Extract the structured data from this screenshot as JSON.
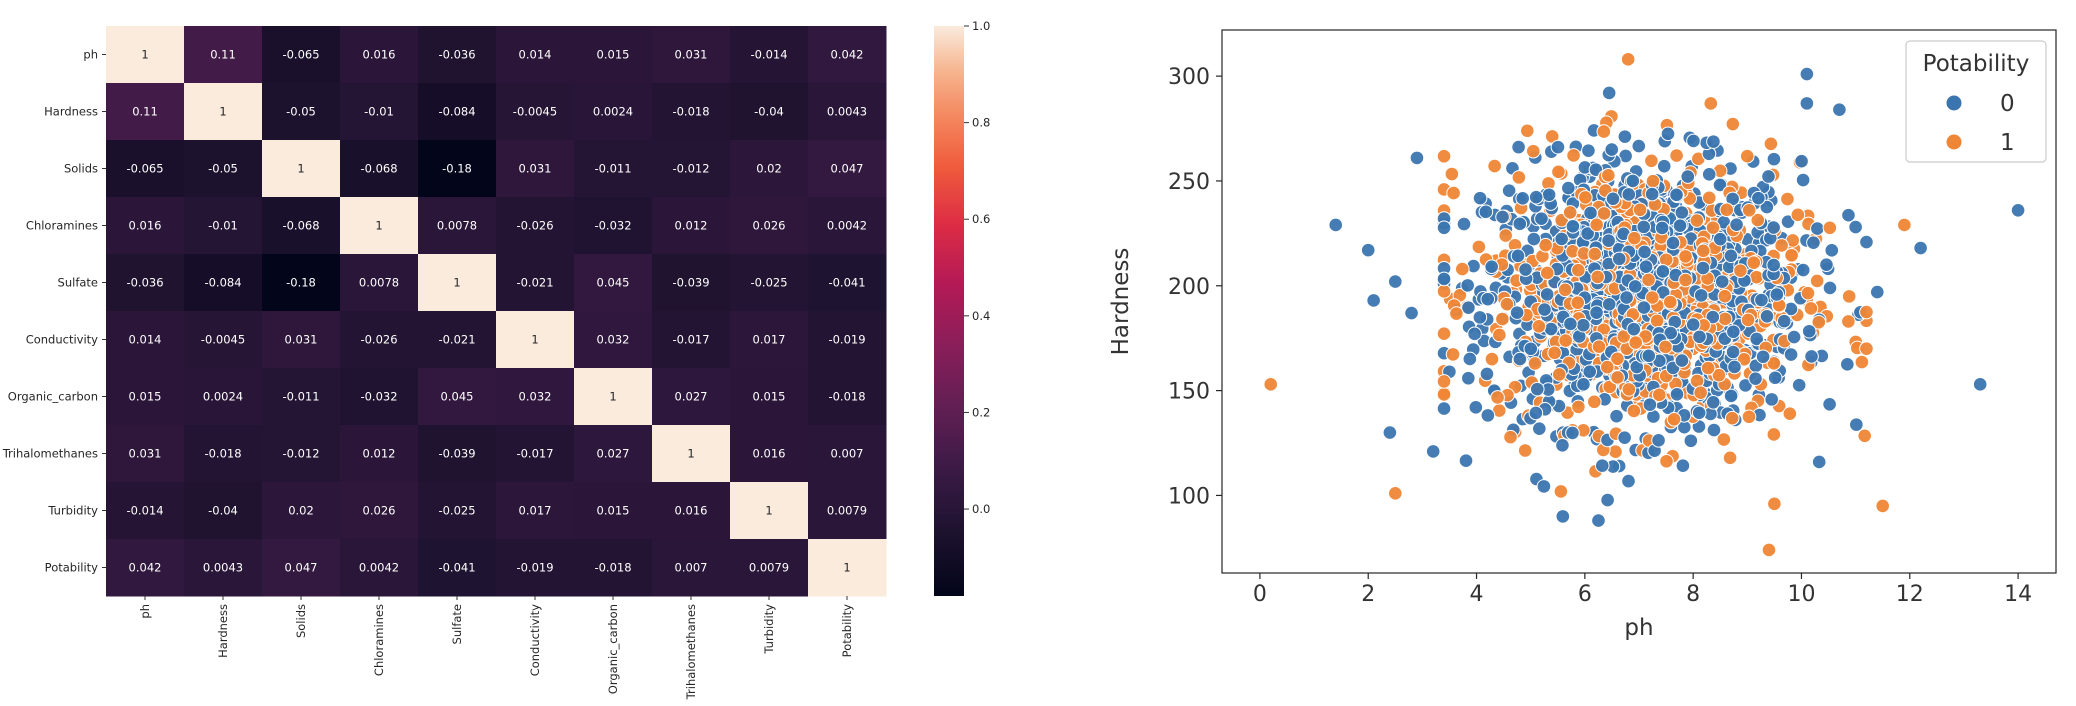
{
  "chart_data": [
    {
      "type": "heatmap",
      "title": "",
      "variables": [
        "ph",
        "Hardness",
        "Solids",
        "Chloramines",
        "Sulfate",
        "Conductivity",
        "Organic_carbon",
        "Trihalomethanes",
        "Turbidity",
        "Potability"
      ],
      "cells": [
        [
          "1",
          "0.11",
          "-0.065",
          "0.016",
          "-0.036",
          "0.014",
          "0.015",
          "0.031",
          "-0.014",
          "0.042"
        ],
        [
          "0.11",
          "1",
          "-0.05",
          "-0.01",
          "-0.084",
          "-0.0045",
          "0.0024",
          "-0.018",
          "-0.04",
          "0.0043"
        ],
        [
          "-0.065",
          "-0.05",
          "1",
          "-0.068",
          "-0.18",
          "0.031",
          "-0.011",
          "-0.012",
          "0.02",
          "0.047"
        ],
        [
          "0.016",
          "-0.01",
          "-0.068",
          "1",
          "0.0078",
          "-0.026",
          "-0.032",
          "0.012",
          "0.026",
          "0.0042"
        ],
        [
          "-0.036",
          "-0.084",
          "-0.18",
          "0.0078",
          "1",
          "-0.021",
          "0.045",
          "-0.039",
          "-0.025",
          "-0.041"
        ],
        [
          "0.014",
          "-0.0045",
          "0.031",
          "-0.026",
          "-0.021",
          "1",
          "0.032",
          "-0.017",
          "0.017",
          "-0.019"
        ],
        [
          "0.015",
          "0.0024",
          "-0.011",
          "-0.032",
          "0.045",
          "0.032",
          "1",
          "0.027",
          "0.015",
          "-0.018"
        ],
        [
          "0.031",
          "-0.018",
          "-0.012",
          "0.012",
          "-0.039",
          "-0.017",
          "0.027",
          "1",
          "0.016",
          "0.007"
        ],
        [
          "-0.014",
          "-0.04",
          "0.02",
          "0.026",
          "-0.025",
          "0.017",
          "0.015",
          "0.016",
          "1",
          "0.0079"
        ],
        [
          "0.042",
          "0.0043",
          "0.047",
          "0.0042",
          "-0.041",
          "-0.019",
          "-0.018",
          "0.007",
          "0.0079",
          "1"
        ]
      ],
      "colorbar": {
        "min": -0.18,
        "max": 1.0,
        "ticks": [
          "1.0",
          "0.8",
          "0.6",
          "0.4",
          "0.2",
          "0.0"
        ],
        "colormap": "rocket"
      }
    },
    {
      "type": "scatter",
      "title": "",
      "xlabel": "ph",
      "ylabel": "Hardness",
      "xlim": [
        -0.7,
        14.7
      ],
      "ylim": [
        63,
        322
      ],
      "xticks": [
        "0",
        "2",
        "4",
        "6",
        "8",
        "10",
        "12",
        "14"
      ],
      "yticks": [
        "100",
        "150",
        "200",
        "250",
        "300"
      ],
      "legend": {
        "title": "Potability",
        "placement": "top-right",
        "entries": [
          "0",
          "1"
        ]
      },
      "colors": {
        "0": "#3b75af",
        "1": "#ef8636"
      },
      "point_count_approx": {
        "0": 1200,
        "1": 800
      },
      "center_mean": {
        "ph": 7.08,
        "Hardness": 196
      },
      "spread_sd": {
        "ph": 1.57,
        "Hardness": 32.9
      },
      "outliers": [
        {
          "x": 0.2,
          "y": 153,
          "c": 1
        },
        {
          "x": 1.4,
          "y": 229,
          "c": 0
        },
        {
          "x": 2.0,
          "y": 217,
          "c": 0
        },
        {
          "x": 2.1,
          "y": 193,
          "c": 0
        },
        {
          "x": 2.4,
          "y": 130,
          "c": 0
        },
        {
          "x": 2.5,
          "y": 101,
          "c": 1
        },
        {
          "x": 2.5,
          "y": 202,
          "c": 0
        },
        {
          "x": 2.8,
          "y": 187,
          "c": 0
        },
        {
          "x": 2.9,
          "y": 261,
          "c": 0
        },
        {
          "x": 3.2,
          "y": 121,
          "c": 0
        },
        {
          "x": 6.8,
          "y": 308,
          "c": 1
        },
        {
          "x": 10.1,
          "y": 301,
          "c": 0
        },
        {
          "x": 10.1,
          "y": 287,
          "c": 0
        },
        {
          "x": 10.7,
          "y": 284,
          "c": 0
        },
        {
          "x": 9.4,
          "y": 74,
          "c": 1
        },
        {
          "x": 9.5,
          "y": 96,
          "c": 1
        },
        {
          "x": 11.5,
          "y": 95,
          "c": 1
        },
        {
          "x": 11.9,
          "y": 229,
          "c": 1
        },
        {
          "x": 12.2,
          "y": 218,
          "c": 0
        },
        {
          "x": 13.3,
          "y": 153,
          "c": 0
        },
        {
          "x": 14.0,
          "y": 236,
          "c": 0
        },
        {
          "x": 11.4,
          "y": 197,
          "c": 0
        },
        {
          "x": 11.2,
          "y": 170,
          "c": 1
        },
        {
          "x": 11.0,
          "y": 228,
          "c": 0
        }
      ]
    }
  ]
}
